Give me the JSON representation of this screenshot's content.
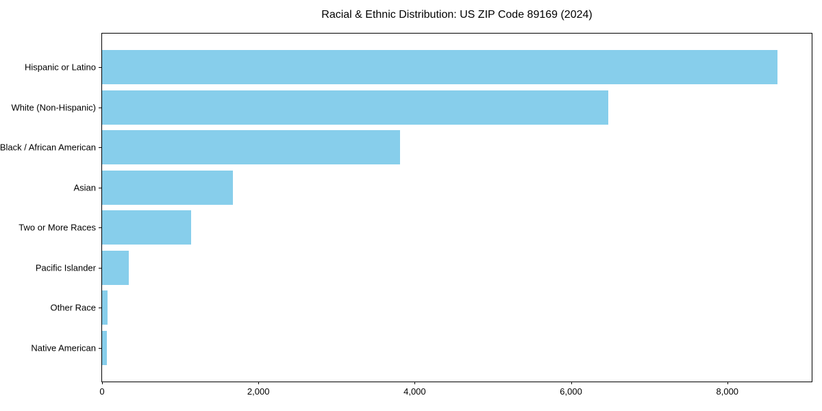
{
  "chart_data": {
    "type": "bar",
    "orientation": "horizontal",
    "title": "Racial & Ethnic Distribution: US ZIP Code 89169 (2024)",
    "categories": [
      "Hispanic or Latino",
      "White (Non-Hispanic)",
      "Black / African American",
      "Asian",
      "Two or More Races",
      "Pacific Islander",
      "Other Race",
      "Native American"
    ],
    "values": [
      8640,
      6480,
      3810,
      1670,
      1140,
      345,
      70,
      60
    ],
    "xlabel": "",
    "ylabel": "",
    "xlim": [
      0,
      9080
    ],
    "xticks": [
      0,
      2000,
      4000,
      6000,
      8000
    ],
    "xtick_labels": [
      "0",
      "2,000",
      "4,000",
      "6,000",
      "8,000"
    ],
    "bar_color": "#87CEEB",
    "axis_color": "#000000",
    "background_color": "#ffffff",
    "grid": false,
    "legend": null
  }
}
